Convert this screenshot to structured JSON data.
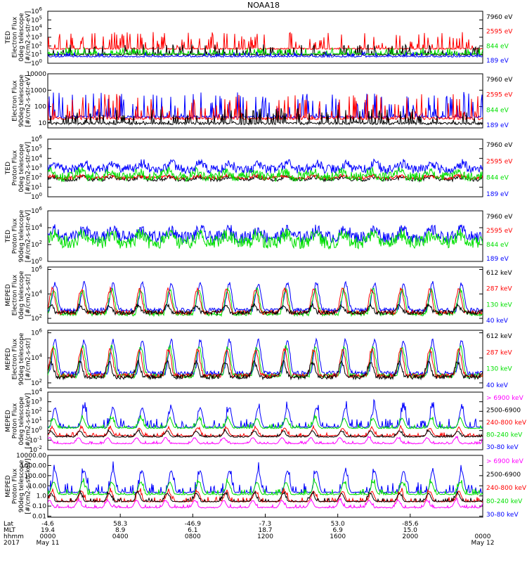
{
  "title": "NOAA18",
  "colors": {
    "black": "#000000",
    "red": "#ff0000",
    "green": "#00e000",
    "blue": "#0000ff",
    "magenta": "#ff00ff"
  },
  "chart_data": [
    {
      "id": "ted-e-0",
      "type": "line",
      "ylabel": [
        "TED",
        "Electron Flux",
        "0deg telescope",
        "[#/cm2-s-str-eV]"
      ],
      "yscale": "log",
      "ylim_exp": [
        0,
        6
      ],
      "yticks": [
        "10^0",
        "10^1",
        "10^2",
        "10^3",
        "10^4",
        "10^5",
        "10^6"
      ],
      "legend": [
        {
          "label": "7960 eV",
          "color": "black"
        },
        {
          "label": "2595 eV",
          "color": "red"
        },
        {
          "label": "844 eV",
          "color": "green"
        },
        {
          "label": "189 eV",
          "color": "blue"
        }
      ],
      "style": "spiky",
      "series": [
        {
          "color": "red",
          "base": 1.6,
          "amp": 2.0
        },
        {
          "color": "black",
          "base": 0.9,
          "amp": 1.3
        },
        {
          "color": "green",
          "base": 1.0,
          "amp": 0.8
        },
        {
          "color": "blue",
          "base": 0.7,
          "amp": 0.6
        }
      ]
    },
    {
      "id": "ted-e-90",
      "type": "line",
      "ylabel": [
        "Electron Flux",
        "90deg telescope",
        "[#/cm2-s-str-eV]"
      ],
      "yscale": "log",
      "ylim_exp": [
        0.7,
        4
      ],
      "yticks": [
        "10",
        "100",
        "1000",
        "10000"
      ],
      "ytick_exp": [
        1,
        2,
        3,
        4
      ],
      "legend": [
        {
          "label": "7960 eV",
          "color": "black"
        },
        {
          "label": "2595 eV",
          "color": "red"
        },
        {
          "label": "844 eV",
          "color": "green"
        },
        {
          "label": "189 eV",
          "color": "blue"
        }
      ],
      "style": "spiky",
      "series": [
        {
          "color": "blue",
          "base": 1.3,
          "amp": 1.6
        },
        {
          "color": "red",
          "base": 1.2,
          "amp": 1.6
        },
        {
          "color": "black",
          "base": 0.9,
          "amp": 1.0
        }
      ]
    },
    {
      "id": "ted-p-0",
      "type": "line",
      "ylabel": [
        "TED",
        "Proton Flux",
        "0deg telescope",
        "[#/cm2-s-str-eV]"
      ],
      "yscale": "log",
      "ylim_exp": [
        0,
        6
      ],
      "yticks": [
        "10^0",
        "10^1",
        "10^2",
        "10^3",
        "10^4",
        "10^5",
        "10^6"
      ],
      "legend": [
        {
          "label": "7960 eV",
          "color": "black"
        },
        {
          "label": "2595 eV",
          "color": "red"
        },
        {
          "label": "844 eV",
          "color": "green"
        },
        {
          "label": "189 eV",
          "color": "blue"
        }
      ],
      "style": "dense",
      "series": [
        {
          "color": "blue",
          "base": 2.4,
          "amp": 1.4
        },
        {
          "color": "black",
          "base": 1.6,
          "amp": 0.6
        },
        {
          "color": "red",
          "base": 1.8,
          "amp": 0.5
        },
        {
          "color": "green",
          "base": 1.6,
          "amp": 1.4
        }
      ]
    },
    {
      "id": "ted-p-90",
      "type": "line",
      "ylabel": [
        "TED",
        "Proton Flux",
        "90deg telescope",
        "[#/cm2-s-str-eV]"
      ],
      "yscale": "log",
      "ylim_exp": [
        0,
        6
      ],
      "yticks": [
        "10^0",
        "10^2",
        "10^4",
        "10^6"
      ],
      "ytick_exp": [
        0,
        2,
        4,
        6
      ],
      "legend": [
        {
          "label": "7960 eV",
          "color": "black"
        },
        {
          "label": "2595 eV",
          "color": "red"
        },
        {
          "label": "844 eV",
          "color": "green"
        },
        {
          "label": "189 eV",
          "color": "blue"
        }
      ],
      "style": "dense",
      "series": [
        {
          "color": "blue",
          "base": 2.2,
          "amp": 2.0
        },
        {
          "color": "green",
          "base": 1.5,
          "amp": 2.2
        }
      ]
    },
    {
      "id": "meped-e-0",
      "type": "line",
      "ylabel": [
        "MEPED",
        "Electron Flux",
        "0deg telescope",
        "[#/cm2-s-str]"
      ],
      "yscale": "log",
      "ylim_exp": [
        1.6,
        6.2
      ],
      "yticks": [
        "10^2",
        "10^4",
        "10^6"
      ],
      "ytick_exp": [
        2,
        4,
        6
      ],
      "legend": [
        {
          "label": "612 keV",
          "color": "black"
        },
        {
          "label": "287 keV",
          "color": "red"
        },
        {
          "label": "130 keV",
          "color": "green"
        },
        {
          "label": "40 keV",
          "color": "blue"
        }
      ],
      "style": "humps",
      "series": [
        {
          "color": "blue",
          "base": 2.5,
          "amp": 2.2
        },
        {
          "color": "green",
          "base": 2.2,
          "amp": 2.0
        },
        {
          "color": "red",
          "base": 2.3,
          "amp": 1.9
        },
        {
          "color": "black",
          "base": 2.3,
          "amp": 0.6
        }
      ]
    },
    {
      "id": "meped-e-90",
      "type": "line",
      "ylabel": [
        "MEPED",
        "Electron Flux",
        "90deg telescope",
        "[#/cm2-s-str]"
      ],
      "yscale": "log",
      "ylim_exp": [
        1.6,
        6.2
      ],
      "yticks": [
        "10^2",
        "10^4",
        "10^6"
      ],
      "ytick_exp": [
        2,
        4,
        6
      ],
      "legend": [
        {
          "label": "612 keV",
          "color": "black"
        },
        {
          "label": "287 keV",
          "color": "red"
        },
        {
          "label": "130 keV",
          "color": "green"
        },
        {
          "label": "40 keV",
          "color": "blue"
        }
      ],
      "style": "humps",
      "series": [
        {
          "color": "blue",
          "base": 2.6,
          "amp": 2.6
        },
        {
          "color": "green",
          "base": 2.4,
          "amp": 2.3
        },
        {
          "color": "red",
          "base": 2.4,
          "amp": 2.1
        },
        {
          "color": "black",
          "base": 2.3,
          "amp": 1.2
        }
      ]
    },
    {
      "id": "meped-p-0",
      "type": "line",
      "ylabel": [
        "MEPED",
        "Proton Flux",
        "0deg telescope",
        "[#/cm2-s-str-keV]"
      ],
      "yscale": "log",
      "ylim_exp": [
        -2,
        4
      ],
      "yticks": [
        "10^-2",
        "10^-1",
        "10^0",
        "10^1",
        "10^2",
        "10^3",
        "10^4"
      ],
      "legend": [
        {
          "label": "> 6900 keV",
          "color": "magenta"
        },
        {
          "label": "2500-6900",
          "color": "black"
        },
        {
          "label": "240-800 keV",
          "color": "red"
        },
        {
          "label": "80-240 keV",
          "color": "green"
        },
        {
          "label": "30-80 keV",
          "color": "blue"
        }
      ],
      "style": "protons",
      "series": [
        {
          "color": "blue",
          "base": 0.3,
          "amp": 2.0
        },
        {
          "color": "green",
          "base": 0.2,
          "amp": 1.0
        },
        {
          "color": "red",
          "base": -0.6,
          "amp": 0.8
        },
        {
          "color": "black",
          "base": -0.7,
          "amp": 0.6
        },
        {
          "color": "magenta",
          "base": -1.4,
          "amp": 0.6
        }
      ]
    },
    {
      "id": "meped-p-90",
      "type": "line",
      "ylabel": [
        "MEPED",
        "Proton Flux",
        "90deg telescope",
        "[#/cm2-s-str-keV]"
      ],
      "yscale": "log",
      "ylim_exp": [
        -2.1,
        4
      ],
      "yticks": [
        "0.01",
        "0.10",
        "1.0",
        "10.00",
        "100.00",
        "1000.00",
        "10000.00"
      ],
      "ytick_exp": [
        -2,
        -1,
        0,
        1,
        2,
        3,
        4
      ],
      "legend": [
        {
          "label": "> 6900 keV",
          "color": "magenta"
        },
        {
          "label": "2500-6900",
          "color": "black"
        },
        {
          "label": "240-800 keV",
          "color": "red"
        },
        {
          "label": "80-240 keV",
          "color": "green"
        },
        {
          "label": "30-80 keV",
          "color": "blue"
        }
      ],
      "style": "protons",
      "series": [
        {
          "color": "blue",
          "base": 0.3,
          "amp": 2.1
        },
        {
          "color": "green",
          "base": 0.1,
          "amp": 1.2
        },
        {
          "color": "red",
          "base": -0.6,
          "amp": 1.0
        },
        {
          "color": "black",
          "base": -0.6,
          "amp": 0.8
        },
        {
          "color": "magenta",
          "base": -1.2,
          "amp": 0.7
        }
      ]
    }
  ],
  "xaxis": {
    "row_labels": [
      "Lat",
      "MLT",
      "hhmm",
      "2017"
    ],
    "ticks": [
      {
        "frac": 0.0,
        "lat": "-4.6",
        "mlt": "19.4",
        "hhmm": "0000",
        "date": "May 11"
      },
      {
        "frac": 0.1667,
        "lat": "58.3",
        "mlt": "8.9",
        "hhmm": "0400",
        "date": ""
      },
      {
        "frac": 0.3333,
        "lat": "-46.9",
        "mlt": "6.1",
        "hhmm": "0800",
        "date": ""
      },
      {
        "frac": 0.5,
        "lat": "-7.3",
        "mlt": "18.7",
        "hhmm": "1200",
        "date": ""
      },
      {
        "frac": 0.6667,
        "lat": "53.0",
        "mlt": "6.9",
        "hhmm": "1600",
        "date": ""
      },
      {
        "frac": 0.8333,
        "lat": "-85.6",
        "mlt": "15.0",
        "hhmm": "2000",
        "date": ""
      },
      {
        "frac": 1.0,
        "lat": "",
        "mlt": "",
        "hhmm": "0000",
        "date": "May 12"
      }
    ]
  }
}
